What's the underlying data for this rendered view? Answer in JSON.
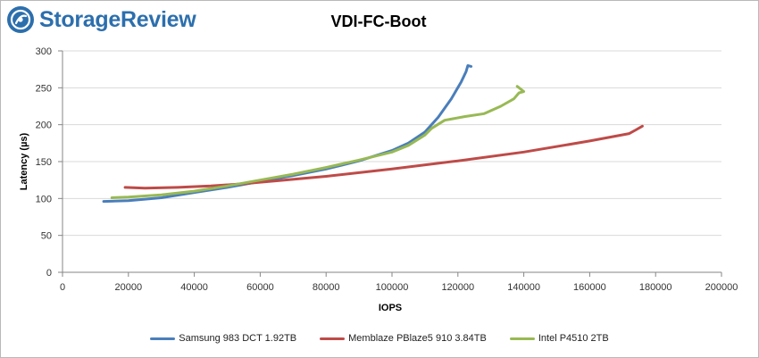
{
  "brand": {
    "name": "StorageReview",
    "icon": "storagereview-logo-icon",
    "color": "#2c6fad"
  },
  "chart_data": {
    "type": "line",
    "title": "VDI-FC-Boot",
    "xlabel": "IOPS",
    "ylabel": "Latency (µs)",
    "xlim": [
      0,
      200000
    ],
    "ylim": [
      0,
      300
    ],
    "xticks": [
      0,
      20000,
      40000,
      60000,
      80000,
      100000,
      120000,
      140000,
      160000,
      180000,
      200000
    ],
    "yticks": [
      0,
      50,
      100,
      150,
      200,
      250,
      300
    ],
    "grid": "horizontal",
    "legend_position": "bottom",
    "series": [
      {
        "name": "Samsung 983 DCT 1.92TB",
        "color": "#4a7ebb",
        "points": [
          [
            12500,
            96
          ],
          [
            20000,
            97
          ],
          [
            30000,
            101
          ],
          [
            40000,
            108
          ],
          [
            50000,
            115
          ],
          [
            60000,
            123
          ],
          [
            70000,
            131
          ],
          [
            80000,
            140
          ],
          [
            90000,
            151
          ],
          [
            100000,
            165
          ],
          [
            105000,
            175
          ],
          [
            110000,
            190
          ],
          [
            114000,
            210
          ],
          [
            118000,
            235
          ],
          [
            121000,
            258
          ],
          [
            122500,
            272
          ],
          [
            123000,
            280
          ],
          [
            124000,
            279
          ]
        ]
      },
      {
        "name": "Memblaze PBlaze5 910 3.84TB",
        "color": "#be4b48",
        "points": [
          [
            19000,
            115
          ],
          [
            25000,
            114
          ],
          [
            35000,
            115
          ],
          [
            45000,
            117
          ],
          [
            55000,
            120
          ],
          [
            65000,
            124
          ],
          [
            80000,
            130
          ],
          [
            100000,
            140
          ],
          [
            120000,
            151
          ],
          [
            140000,
            163
          ],
          [
            160000,
            178
          ],
          [
            172000,
            188
          ],
          [
            174000,
            193
          ],
          [
            176000,
            198
          ]
        ]
      },
      {
        "name": "Intel P4510 2TB",
        "color": "#98b954",
        "points": [
          [
            15000,
            101
          ],
          [
            20000,
            102
          ],
          [
            30000,
            105
          ],
          [
            40000,
            110
          ],
          [
            50000,
            117
          ],
          [
            60000,
            125
          ],
          [
            70000,
            133
          ],
          [
            80000,
            142
          ],
          [
            90000,
            152
          ],
          [
            100000,
            163
          ],
          [
            105000,
            172
          ],
          [
            110000,
            186
          ],
          [
            112000,
            195
          ],
          [
            116000,
            206
          ],
          [
            122000,
            211
          ],
          [
            128000,
            215
          ],
          [
            133000,
            225
          ],
          [
            137000,
            235
          ],
          [
            138500,
            243
          ],
          [
            140000,
            245
          ],
          [
            138000,
            252
          ]
        ]
      }
    ]
  }
}
